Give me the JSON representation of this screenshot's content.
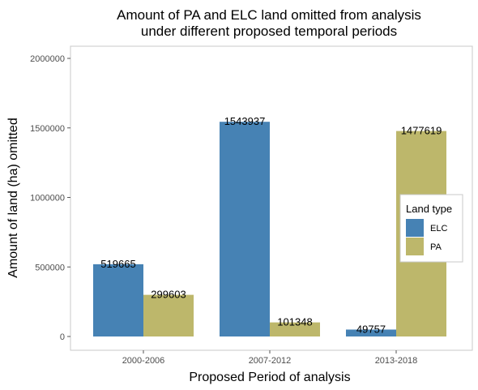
{
  "chart_data": {
    "type": "bar",
    "title": "Amount of PA and ELC land omitted from analysis",
    "subtitle": "under different proposed temporal periods",
    "xlabel": "Proposed Period of analysis",
    "ylabel": "Amount of land (ha) omitted",
    "categories": [
      "2000-2006",
      "2007-2012",
      "2013-2018"
    ],
    "series": [
      {
        "name": "ELC",
        "values": [
          519665,
          1543937,
          49757
        ],
        "color": "#4682b4"
      },
      {
        "name": "PA",
        "values": [
          299603,
          101348,
          1477619
        ],
        "color": "#bdb76b"
      }
    ],
    "ylim": [
      0,
      2000000
    ],
    "yticks": [
      0,
      500000,
      1000000,
      1500000,
      2000000
    ],
    "ytick_labels": [
      "0",
      "500000",
      "1000000",
      "1500000",
      "2000000"
    ],
    "legend": {
      "title": "Land type",
      "position": "right"
    },
    "grid": false
  }
}
